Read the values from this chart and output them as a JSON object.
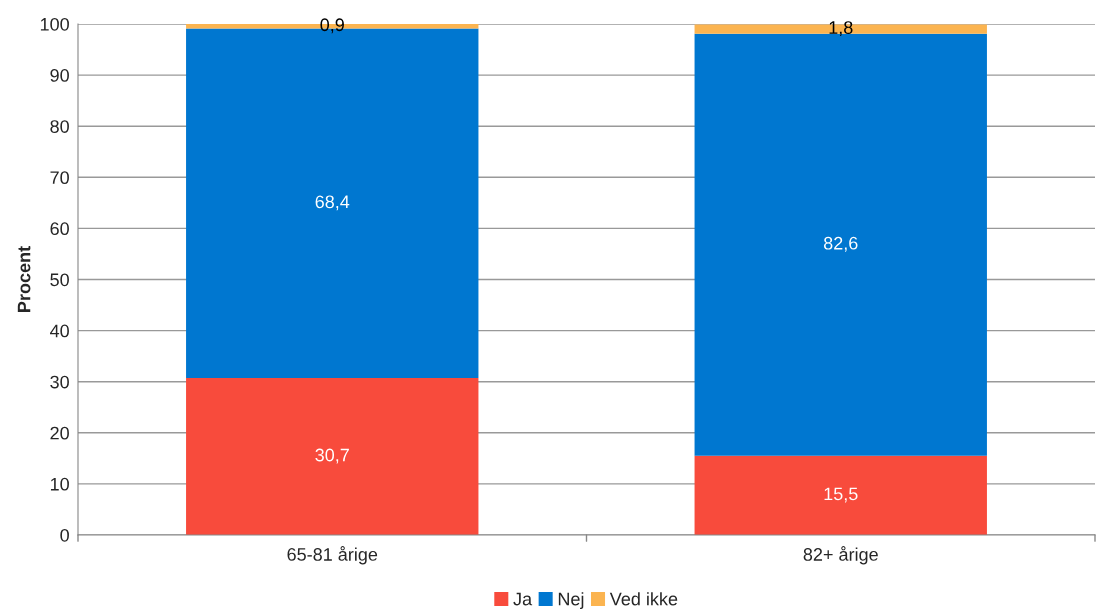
{
  "chart_data": {
    "type": "bar",
    "ylabel": "Procent",
    "categories": [
      "65-81 årige",
      "82+ årige"
    ],
    "stacked": true,
    "series": [
      {
        "name": "Ja",
        "color": "#f84b3c",
        "values": [
          30.7,
          15.5
        ],
        "value_labels": [
          "30,7",
          "15,5"
        ]
      },
      {
        "name": "Nej",
        "color": "#0077d0",
        "values": [
          68.4,
          82.6
        ],
        "value_labels": [
          "68,4",
          "82,6"
        ]
      },
      {
        "name": "Ved ikke",
        "color": "#fbb450",
        "values": [
          0.9,
          1.8
        ],
        "value_labels": [
          "0,9",
          "1,8"
        ]
      }
    ],
    "ylim": [
      0,
      100
    ],
    "yticks": [
      0,
      10,
      20,
      30,
      40,
      50,
      60,
      70,
      80,
      90,
      100
    ],
    "grid": "y",
    "legend": "bottom"
  }
}
